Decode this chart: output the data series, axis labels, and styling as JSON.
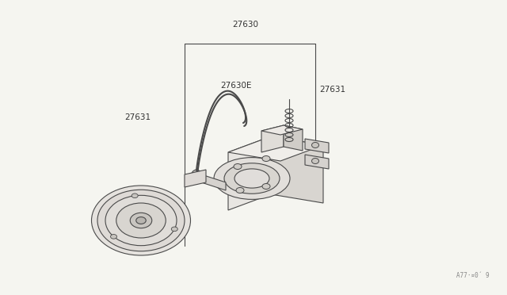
{
  "bg_color": "#f5f5f0",
  "line_color": "#4a4a4a",
  "label_color": "#333333",
  "lw": 0.8,
  "lw_thick": 1.1,
  "watermark": "A77·°0· 9"
}
